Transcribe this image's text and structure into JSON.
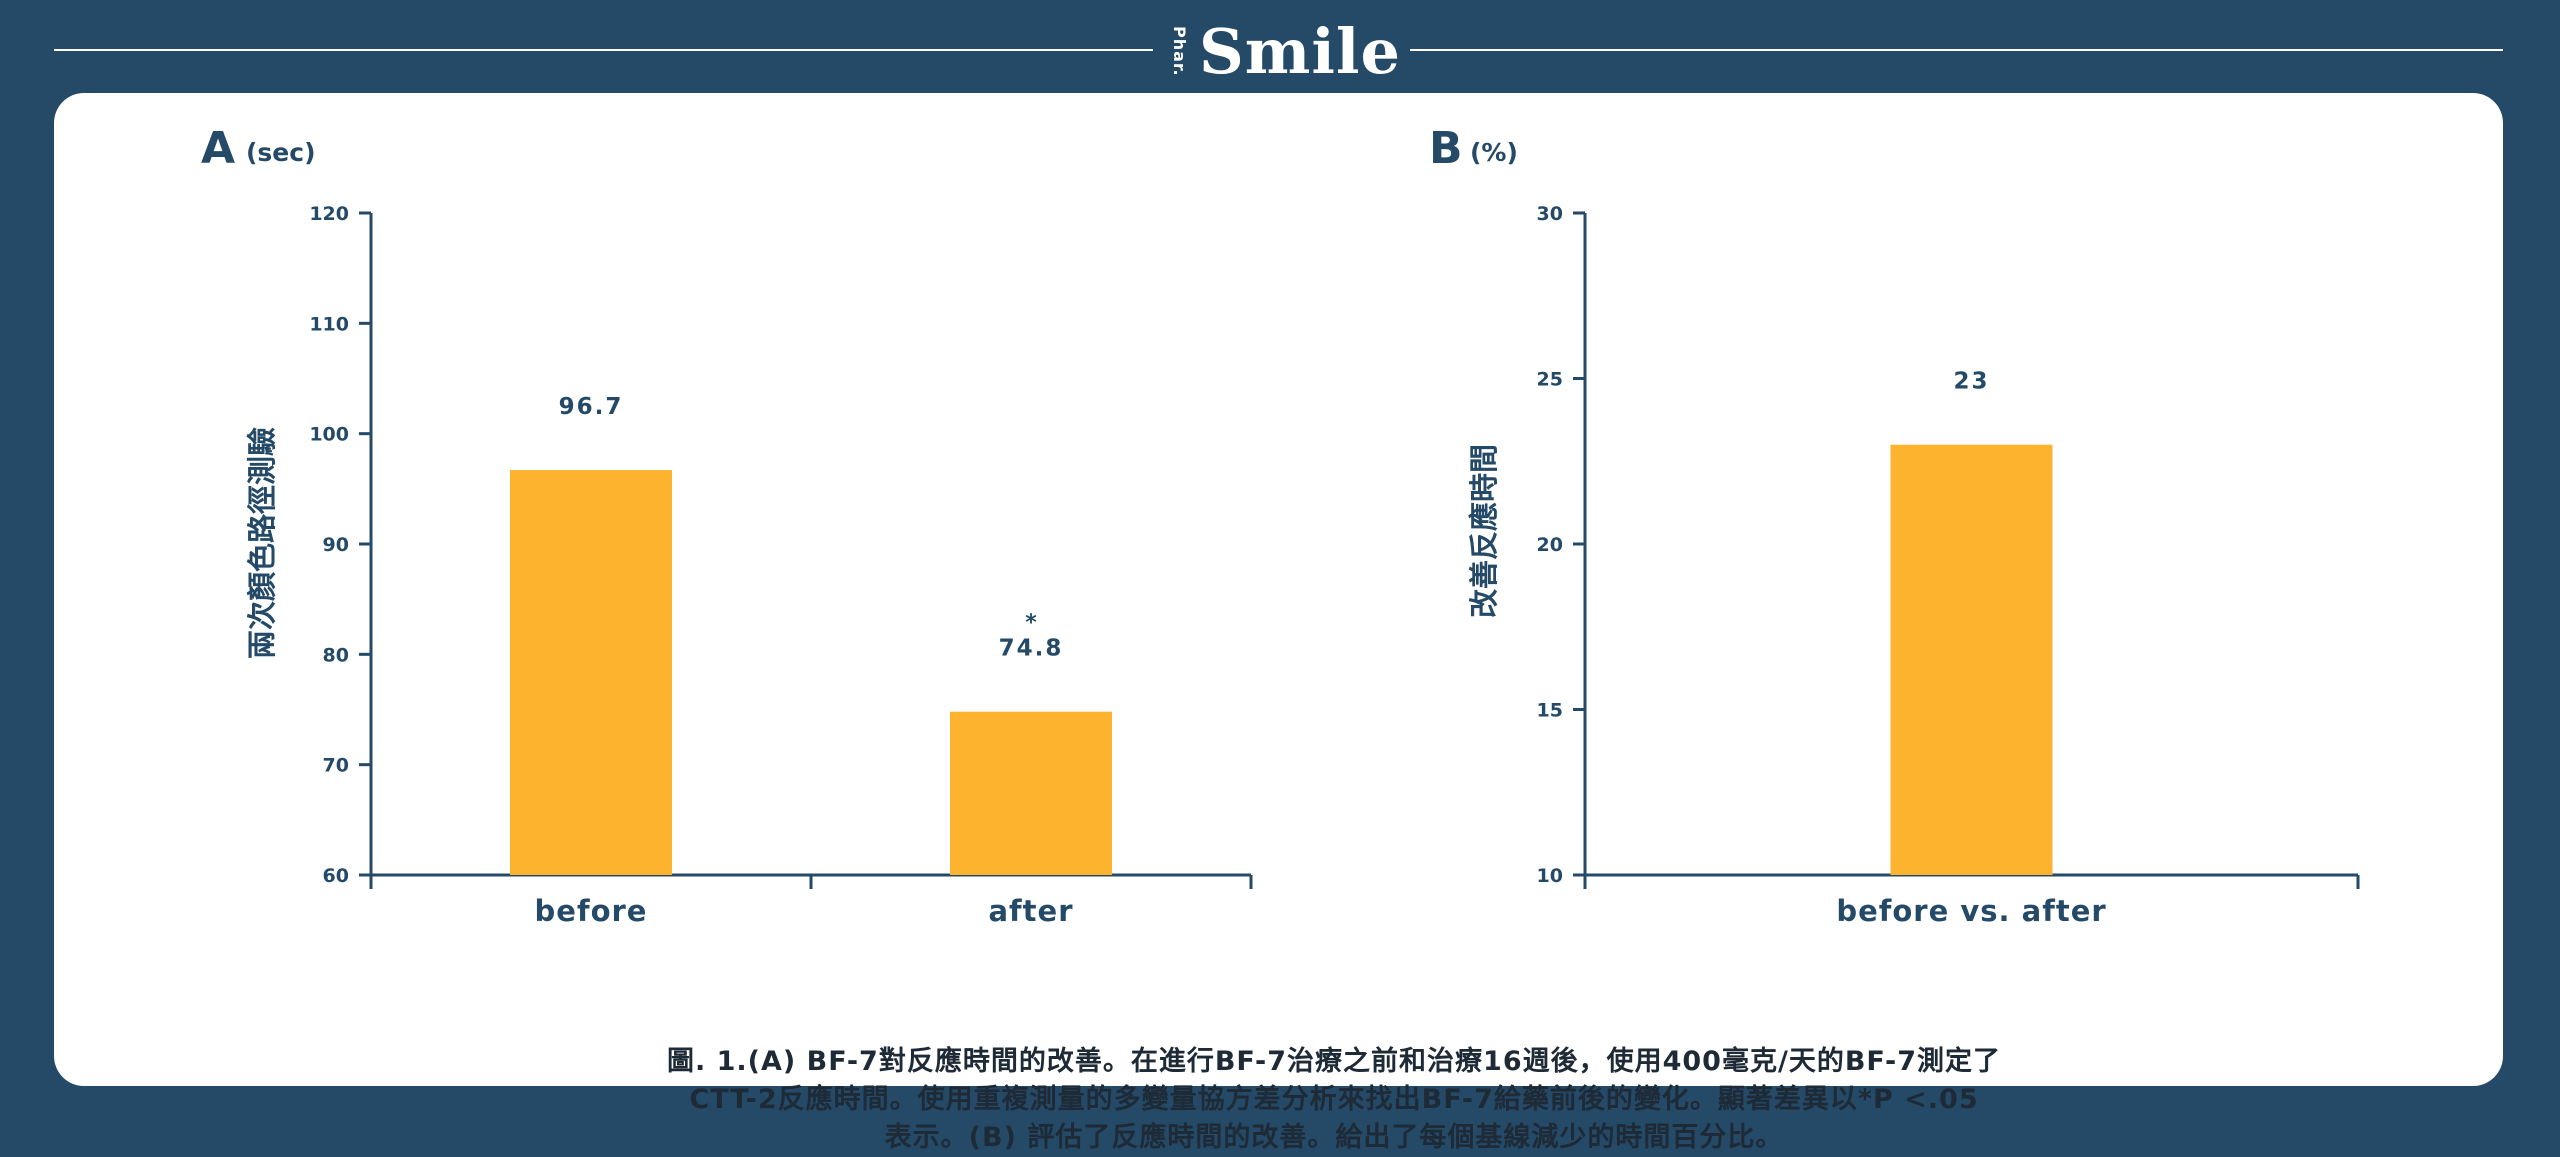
{
  "header": {
    "logo_small": "Phar.",
    "logo_main": "Smile"
  },
  "chart_data": [
    {
      "type": "bar",
      "panel_label": "A",
      "unit": "(sec)",
      "ylabel": "兩次顏色路徑測驗",
      "categories": [
        "before",
        "after"
      ],
      "values": [
        96.7,
        74.8
      ],
      "data_labels": [
        "96.7",
        "74.8"
      ],
      "significance": [
        "",
        "*"
      ],
      "ylim": [
        60,
        120
      ],
      "yticks": [
        60,
        70,
        80,
        90,
        100,
        110,
        120
      ],
      "bar_color": "#fdb32e",
      "grid": false
    },
    {
      "type": "bar",
      "panel_label": "B",
      "unit": "(%)",
      "ylabel": "改善反應時間",
      "categories": [
        "before vs. after"
      ],
      "values": [
        23
      ],
      "data_labels": [
        "23"
      ],
      "significance": [
        ""
      ],
      "ylim": [
        10,
        30
      ],
      "yticks": [
        10,
        15,
        20,
        25,
        30
      ],
      "bar_color": "#fdb32e",
      "grid": false
    }
  ],
  "caption": {
    "line1": "圖. 1.(A) BF-7對反應時間的改善。在進行BF-7治療之前和治療16週後，使用400毫克/天的BF-7測定了",
    "line2": "CTT-2反應時間。使用重複測量的多變量協方差分析來找出BF-7給藥前後的變化。顯著差異以*P <.05",
    "line3": "表示。(B) 評估了反應時間的改善。給出了每個基線減少的時間百分比。"
  },
  "colors": {
    "background": "#244a68",
    "card": "#ffffff",
    "bar": "#fdb32e",
    "axis": "#244a68"
  }
}
